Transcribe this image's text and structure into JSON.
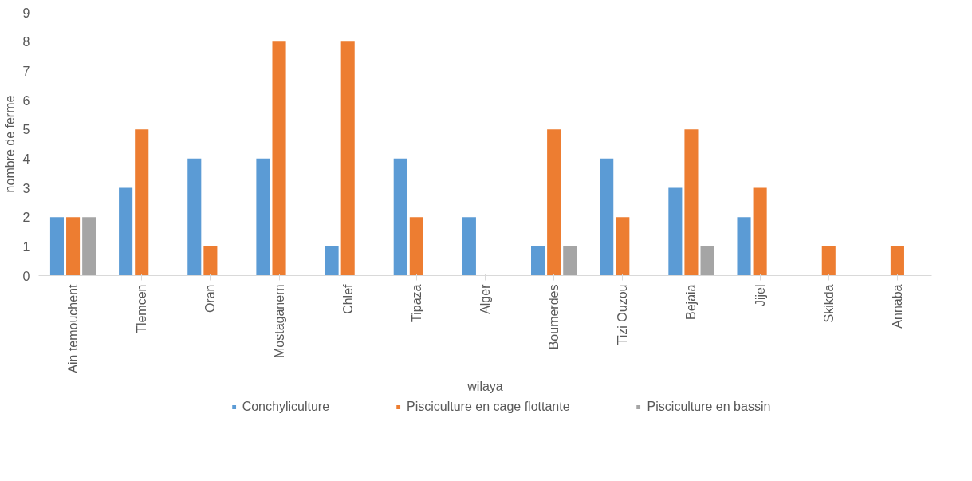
{
  "chart_data": {
    "type": "bar",
    "xlabel": "wilaya",
    "ylabel": "nombre de ferme",
    "categories": [
      "Ain temouchent",
      "Tlemcen",
      "Oran",
      "Mostaganem",
      "Chlef",
      "Tipaza",
      "Alger",
      "Boumerdes",
      "Tizi Ouzou",
      "Bejaia",
      "Jijel",
      "Skikda",
      "Annaba"
    ],
    "series": [
      {
        "name": "Conchyliculture",
        "color": "#5b9bd5",
        "values": [
          2,
          3,
          4,
          4,
          1,
          4,
          2,
          1,
          4,
          3,
          2,
          0,
          0
        ]
      },
      {
        "name": "Pisciculture en cage flottante",
        "color": "#ed7d31",
        "values": [
          2,
          5,
          1,
          8,
          8,
          2,
          0,
          5,
          2,
          5,
          3,
          1,
          1
        ]
      },
      {
        "name": "Pisciculture en bassin",
        "color": "#a5a5a5",
        "values": [
          2,
          0,
          0,
          0,
          0,
          0,
          0,
          1,
          0,
          1,
          0,
          0,
          0
        ]
      }
    ],
    "ylim": [
      0,
      9
    ],
    "yticks": [
      0,
      1,
      2,
      3,
      4,
      5,
      6,
      7,
      8,
      9
    ],
    "grid": false,
    "legend": "bottom"
  }
}
